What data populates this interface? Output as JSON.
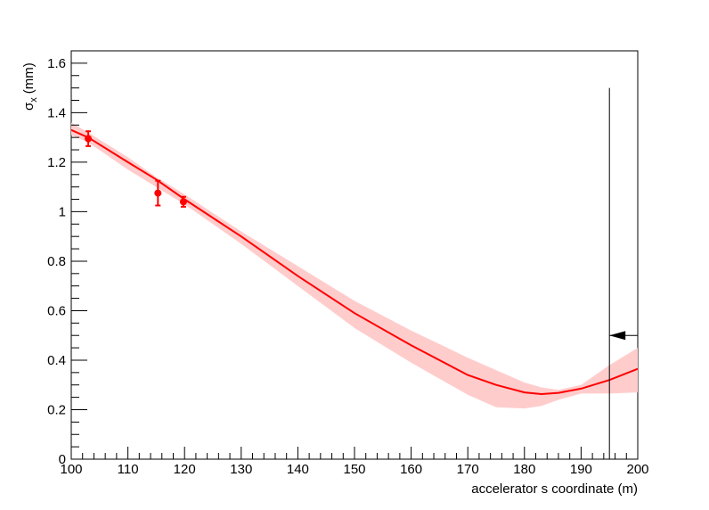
{
  "chart_data": {
    "type": "line",
    "xlabel": "accelerator s coordinate (m)",
    "ylabel": "σ",
    "ylabel_subscript": "x",
    "ylabel_unit": "(mm)",
    "xlim": [
      100,
      200
    ],
    "ylim": [
      0,
      1.65
    ],
    "x_ticks": [
      100,
      110,
      120,
      130,
      140,
      150,
      160,
      170,
      180,
      190,
      200
    ],
    "x_tick_labels": [
      "100",
      "110",
      "120",
      "130",
      "140",
      "150",
      "160",
      "170",
      "180",
      "190",
      "200"
    ],
    "y_ticks": [
      0,
      0.2,
      0.4,
      0.6,
      0.8,
      1,
      1.2,
      1.4,
      1.6
    ],
    "y_tick_labels": [
      "0",
      "0.2",
      "0.4",
      "0.6",
      "0.8",
      "1",
      "1.2",
      "1.4",
      "1.6"
    ],
    "grid": false,
    "legend": "none",
    "colors": {
      "fit": "#ff0000",
      "band": "#ffcccc",
      "points": "#ff0000",
      "marker": "#000000"
    },
    "fit_curve": {
      "x": [
        100,
        103,
        110,
        115,
        120,
        130,
        140,
        150,
        160,
        170,
        175,
        180,
        183,
        186,
        190,
        195,
        200
      ],
      "y": [
        1.33,
        1.3,
        1.2,
        1.13,
        1.05,
        0.9,
        0.74,
        0.59,
        0.46,
        0.34,
        0.3,
        0.27,
        0.263,
        0.268,
        0.285,
        0.32,
        0.365
      ]
    },
    "error_band": {
      "x": [
        100,
        103,
        110,
        115,
        120,
        130,
        140,
        150,
        160,
        170,
        175,
        180,
        183,
        186,
        190,
        195,
        200
      ],
      "upper": [
        1.36,
        1.32,
        1.22,
        1.14,
        1.07,
        0.92,
        0.78,
        0.64,
        0.52,
        0.41,
        0.36,
        0.31,
        0.29,
        0.28,
        0.3,
        0.38,
        0.45
      ],
      "lower": [
        1.31,
        1.28,
        1.17,
        1.1,
        1.03,
        0.87,
        0.7,
        0.53,
        0.39,
        0.26,
        0.21,
        0.205,
        0.215,
        0.24,
        0.265,
        0.265,
        0.27
      ]
    },
    "points": [
      {
        "x": 103,
        "y": 1.295,
        "err": 0.03
      },
      {
        "x": 115.3,
        "y": 1.075,
        "err": 0.05
      },
      {
        "x": 119.8,
        "y": 1.04,
        "err": 0.02
      }
    ],
    "marker": {
      "x": 195,
      "y_top": 1.5,
      "arrow_y": 0.5,
      "arrow_x_end": 200
    }
  }
}
